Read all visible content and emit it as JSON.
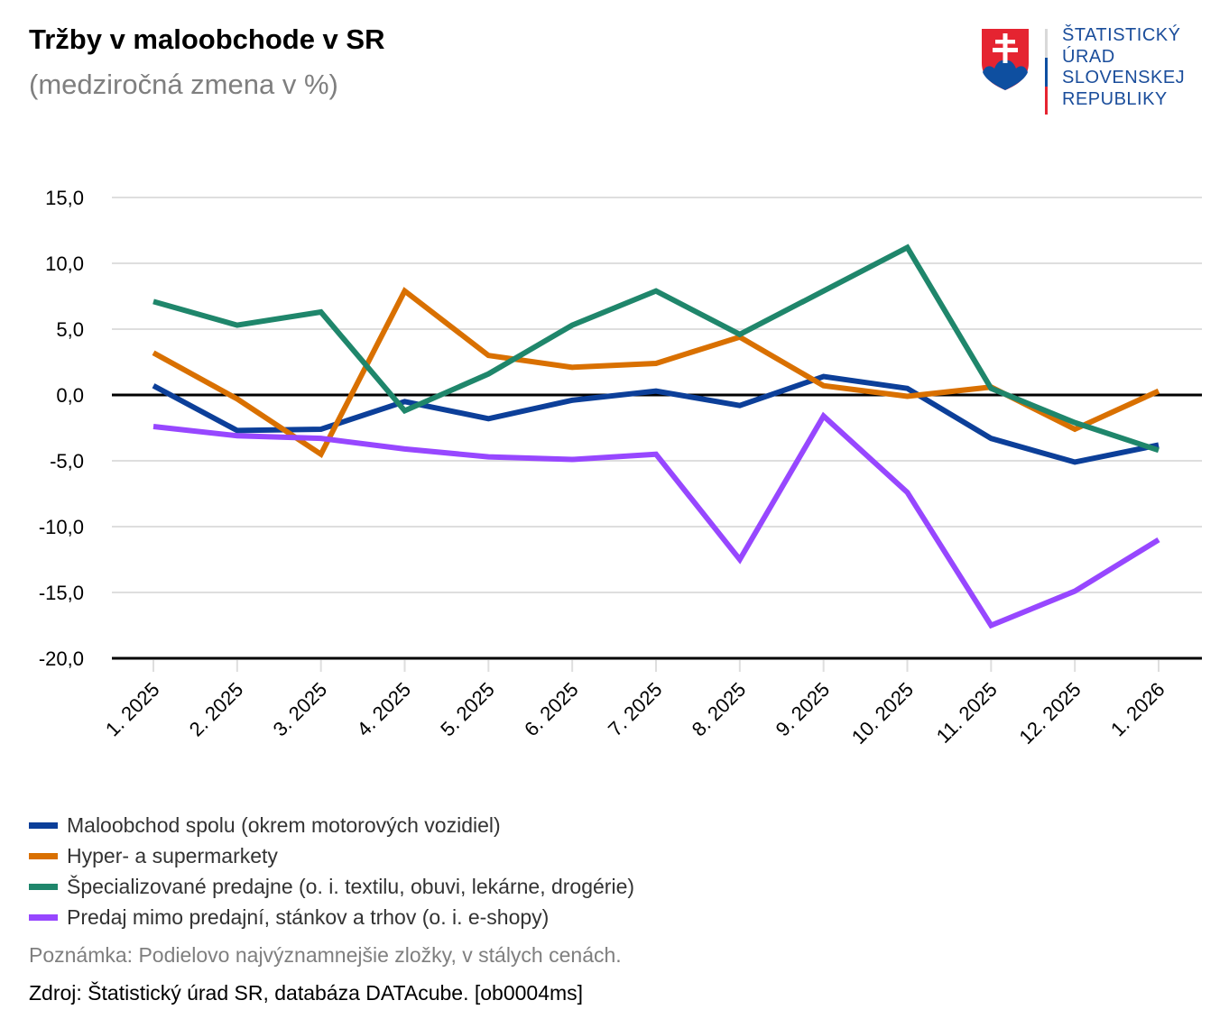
{
  "header": {
    "title": "Tržby v maloobchode v SR",
    "subtitle": "(medziročná zmena v %)"
  },
  "logo": {
    "icon": "slovak-coat-of-arms-icon",
    "lines": [
      "ŠTATISTICKÝ",
      "ÚRAD",
      "SLOVENSKEJ",
      "REPUBLIKY"
    ],
    "text_color": "#1a4d9b",
    "shield_red": "#e52431",
    "shield_blue": "#0e4fa0"
  },
  "chart_data": {
    "type": "line",
    "title": "Tržby v maloobchode v SR",
    "subtitle": "(medziročná zmena v %)",
    "xlabel": "",
    "ylabel": "",
    "ylim": [
      -20,
      15
    ],
    "yticks": [
      15,
      10,
      5,
      0,
      -5,
      -10,
      -15,
      -20
    ],
    "ytick_labels": [
      "15,0",
      "10,0",
      "5,0",
      "0,0",
      "-5,0",
      "-10,0",
      "-15,0",
      "-20,0"
    ],
    "grid": true,
    "legend_position": "bottom-left",
    "categories": [
      "1. 2025",
      "2. 2025",
      "3. 2025",
      "4. 2025",
      "5. 2025",
      "6. 2025",
      "7. 2025",
      "8. 2025",
      "9. 2025",
      "10. 2025",
      "11. 2025",
      "12. 2025",
      "1. 2026"
    ],
    "series": [
      {
        "name": "Maloobchod spolu (okrem motorových vozidiel)",
        "color": "#0c3f99",
        "values": [
          0.7,
          -2.7,
          -2.6,
          -0.5,
          -1.8,
          -0.4,
          0.3,
          -0.8,
          1.4,
          0.5,
          -3.3,
          -5.1,
          -3.8
        ]
      },
      {
        "name": "Hyper- a supermarkety",
        "color": "#d97000",
        "values": [
          3.2,
          -0.3,
          -4.5,
          7.9,
          3.0,
          2.1,
          2.4,
          4.4,
          0.7,
          -0.1,
          0.6,
          -2.6,
          0.3
        ]
      },
      {
        "name": "Špecializované predajne (o. i. textilu, obuvi, lekárne, drogérie)",
        "color": "#1f866b",
        "values": [
          7.1,
          5.3,
          6.3,
          -1.2,
          1.6,
          5.3,
          7.9,
          4.6,
          7.9,
          11.2,
          0.5,
          -2.1,
          -4.2
        ]
      },
      {
        "name": "Predaj mimo predajní, stánkov a trhov (o. i. e-shopy)",
        "color": "#9747ff",
        "values": [
          -2.4,
          -3.1,
          -3.3,
          -4.1,
          -4.7,
          -4.9,
          -4.5,
          -12.5,
          -1.6,
          -7.4,
          -17.5,
          -14.9,
          -11.0
        ]
      }
    ]
  },
  "footer": {
    "note": "Poznámka: Podielovo najvýznamnejšie zložky, v stálych cenách.",
    "source": "Zdroj: Štatistický úrad SR, databáza DATAcube. [ob0004ms]"
  }
}
